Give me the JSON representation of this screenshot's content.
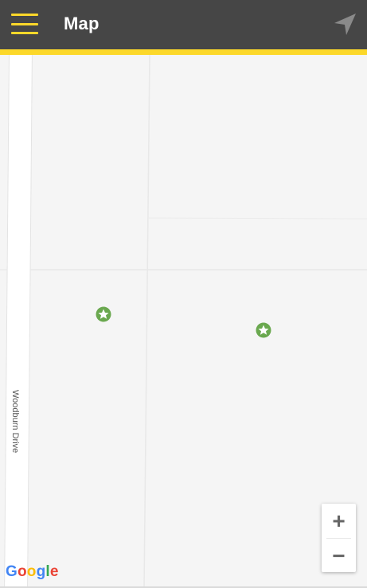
{
  "app_bar": {
    "title": "Map",
    "menu_icon": "hamburger-menu-icon",
    "locate_icon": "navigation-arrow-icon",
    "bg_color": "#464646",
    "accent_color": "#fcd82a"
  },
  "map": {
    "street_name": "Woodburn Drive",
    "markers": [
      {
        "icon": "star-marker-icon",
        "color": "#6aa84f"
      },
      {
        "icon": "star-marker-icon",
        "color": "#6aa84f"
      }
    ],
    "zoom_in_label": "+",
    "zoom_out_label": "−",
    "attribution": [
      "G",
      "o",
      "o",
      "g",
      "l",
      "e"
    ],
    "attribution_colors": [
      "#4285F4",
      "#EA4335",
      "#FBBC05",
      "#4285F4",
      "#34A853",
      "#EA4335"
    ]
  }
}
